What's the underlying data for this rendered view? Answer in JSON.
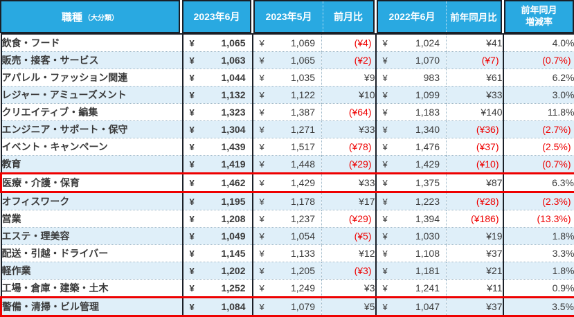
{
  "colors": {
    "header_bg": "#29a9e1",
    "header_text": "#ffffff",
    "grid_dark_border": "#1a1f27",
    "grid_dotted_line": "#9bb6c7",
    "alt_row_bg": "#dfeff9",
    "negative_red": "#ee0000",
    "highlight_outline_red": "#ee0000"
  },
  "currency_symbol": "¥",
  "header": {
    "category": "職種",
    "category_sub": "（大分類）",
    "jun2023": "2023年6月",
    "may2023": "2023年5月",
    "mom": "前月比",
    "jun2022": "2022年6月",
    "yoy": "前年同月比",
    "rate_line1": "前年同月",
    "rate_line2": "増減率"
  },
  "rows": [
    {
      "category": "飲食・フード",
      "jun2023": "1,065",
      "may2023": "1,069",
      "mom": "(¥4)",
      "jun2022": "1,024",
      "yoy": "¥41",
      "rate": "4.0%",
      "highlighted": false
    },
    {
      "category": "販売・接客・サービス",
      "jun2023": "1,063",
      "may2023": "1,065",
      "mom": "(¥2)",
      "jun2022": "1,070",
      "yoy": "(¥7)",
      "rate": "(0.7%)",
      "highlighted": false
    },
    {
      "category": "アパレル・ファッション関連",
      "jun2023": "1,044",
      "may2023": "1,035",
      "mom": "¥9",
      "jun2022": "983",
      "yoy": "¥61",
      "rate": "6.2%",
      "highlighted": false
    },
    {
      "category": "レジャー・アミューズメント",
      "jun2023": "1,132",
      "may2023": "1,122",
      "mom": "¥10",
      "jun2022": "1,099",
      "yoy": "¥33",
      "rate": "3.0%",
      "highlighted": false
    },
    {
      "category": "クリエイティブ・編集",
      "jun2023": "1,323",
      "may2023": "1,387",
      "mom": "(¥64)",
      "jun2022": "1,183",
      "yoy": "¥140",
      "rate": "11.8%",
      "highlighted": false
    },
    {
      "category": "エンジニア・サポート・保守",
      "jun2023": "1,304",
      "may2023": "1,271",
      "mom": "¥33",
      "jun2022": "1,340",
      "yoy": "(¥36)",
      "rate": "(2.7%)",
      "highlighted": false
    },
    {
      "category": "イベント・キャンペーン",
      "jun2023": "1,439",
      "may2023": "1,517",
      "mom": "(¥78)",
      "jun2022": "1,476",
      "yoy": "(¥37)",
      "rate": "(2.5%)",
      "highlighted": false
    },
    {
      "category": "教育",
      "jun2023": "1,419",
      "may2023": "1,448",
      "mom": "(¥29)",
      "jun2022": "1,429",
      "yoy": "(¥10)",
      "rate": "(0.7%)",
      "highlighted": false
    },
    {
      "category": "医療・介護・保育",
      "jun2023": "1,462",
      "may2023": "1,429",
      "mom": "¥33",
      "jun2022": "1,375",
      "yoy": "¥87",
      "rate": "6.3%",
      "highlighted": true
    },
    {
      "category": "オフィスワーク",
      "jun2023": "1,195",
      "may2023": "1,178",
      "mom": "¥17",
      "jun2022": "1,223",
      "yoy": "(¥28)",
      "rate": "(2.3%)",
      "highlighted": false
    },
    {
      "category": "営業",
      "jun2023": "1,208",
      "may2023": "1,237",
      "mom": "(¥29)",
      "jun2022": "1,394",
      "yoy": "(¥186)",
      "rate": "(13.3%)",
      "highlighted": false
    },
    {
      "category": "エステ・理美容",
      "jun2023": "1,049",
      "may2023": "1,054",
      "mom": "(¥5)",
      "jun2022": "1,030",
      "yoy": "¥19",
      "rate": "1.8%",
      "highlighted": false
    },
    {
      "category": "配送・引越・ドライバー",
      "jun2023": "1,145",
      "may2023": "1,133",
      "mom": "¥12",
      "jun2022": "1,108",
      "yoy": "¥37",
      "rate": "3.3%",
      "highlighted": false
    },
    {
      "category": "軽作業",
      "jun2023": "1,202",
      "may2023": "1,205",
      "mom": "(¥3)",
      "jun2022": "1,181",
      "yoy": "¥21",
      "rate": "1.8%",
      "highlighted": false
    },
    {
      "category": "工場・倉庫・建築・土木",
      "jun2023": "1,252",
      "may2023": "1,249",
      "mom": "¥3",
      "jun2022": "1,241",
      "yoy": "¥11",
      "rate": "0.9%",
      "highlighted": false
    },
    {
      "category": "警備・清掃・ビル管理",
      "jun2023": "1,084",
      "may2023": "1,079",
      "mom": "¥5",
      "jun2022": "1,047",
      "yoy": "¥37",
      "rate": "3.5%",
      "highlighted": true
    }
  ]
}
